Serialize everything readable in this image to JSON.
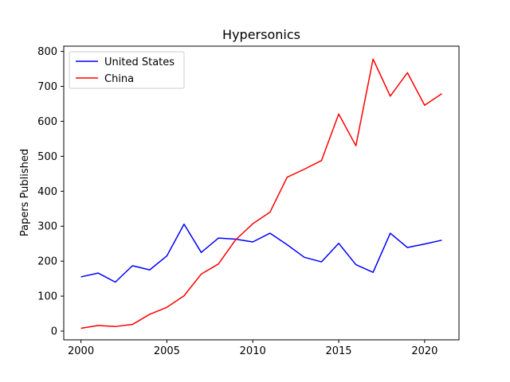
{
  "chart_data": {
    "type": "line",
    "title": "Hypersonics",
    "xlabel": "",
    "ylabel": "Papers Published",
    "x": [
      2000,
      2001,
      2002,
      2003,
      2004,
      2005,
      2006,
      2007,
      2008,
      2009,
      2010,
      2011,
      2012,
      2013,
      2014,
      2015,
      2016,
      2017,
      2018,
      2019,
      2020,
      2021
    ],
    "series": [
      {
        "name": "United States",
        "color": "#0000ff",
        "values": [
          155,
          166,
          140,
          187,
          175,
          215,
          306,
          225,
          266,
          263,
          255,
          280,
          247,
          211,
          198,
          251,
          190,
          168,
          280,
          239,
          249,
          260
        ]
      },
      {
        "name": "China",
        "color": "#ff0000",
        "values": [
          8,
          16,
          13,
          19,
          48,
          68,
          101,
          163,
          192,
          261,
          307,
          340,
          440,
          463,
          488,
          621,
          530,
          778,
          672,
          739,
          646,
          679
        ]
      }
    ],
    "xlim": [
      1999,
      2022
    ],
    "ylim": [
      -25,
      815
    ],
    "xticks": [
      2000,
      2005,
      2010,
      2015,
      2020
    ],
    "yticks": [
      0,
      100,
      200,
      300,
      400,
      500,
      600,
      700,
      800
    ],
    "grid": false,
    "legend_position": "top-left"
  }
}
